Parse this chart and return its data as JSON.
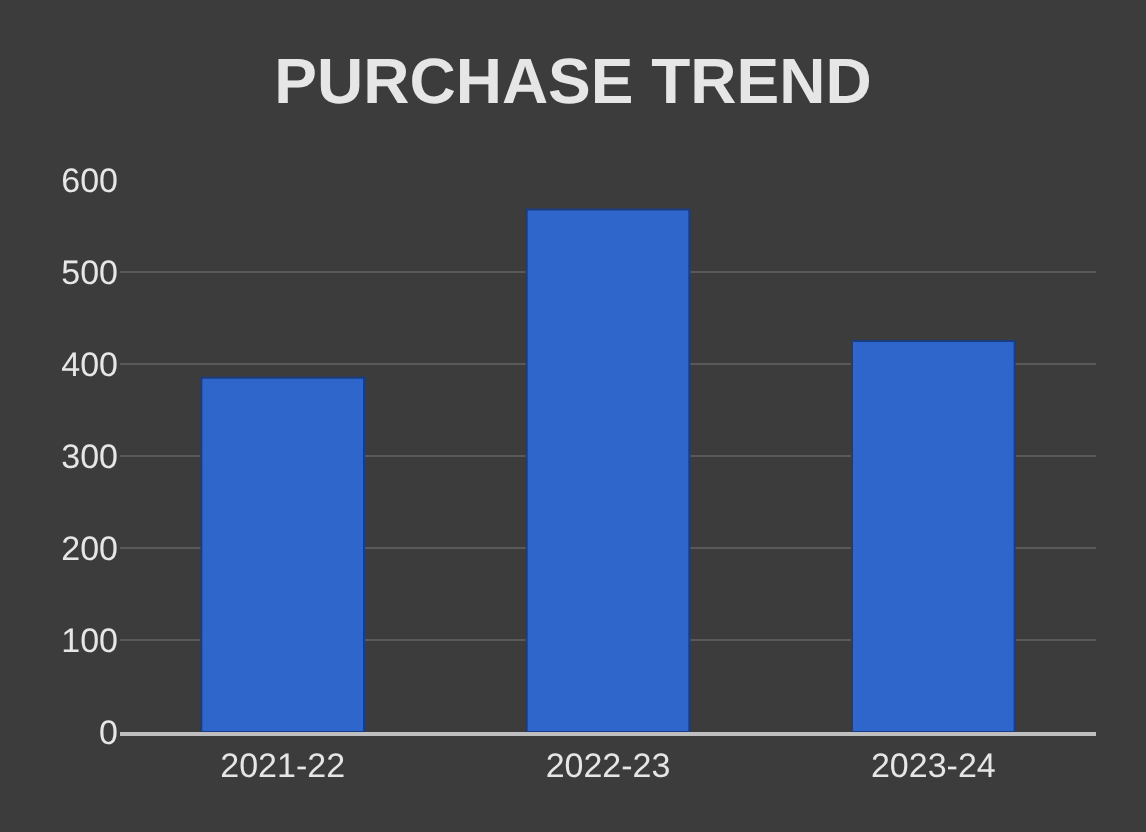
{
  "chart_data": {
    "type": "bar",
    "title": "PURCHASE TREND",
    "categories": [
      "2021-22",
      "2022-23",
      "2023-24"
    ],
    "values": [
      385,
      568,
      425
    ],
    "color": "#2f66cc",
    "ylim": [
      0,
      600
    ],
    "yticks": [
      0,
      100,
      200,
      300,
      400,
      500,
      600
    ],
    "grid": "y"
  }
}
